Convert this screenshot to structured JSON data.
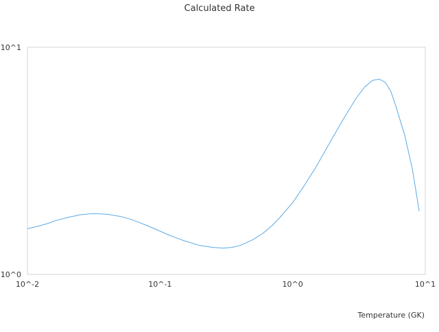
{
  "chart_data": {
    "type": "line",
    "title": "Calculated Rate",
    "xlabel": "Temperature (GK)",
    "ylabel": "",
    "xscale": "log",
    "yscale": "log",
    "xlim": [
      0.01,
      10
    ],
    "ylim": [
      1,
      10
    ],
    "x_ticks": [
      {
        "value": 0.01,
        "label": "10^-2"
      },
      {
        "value": 0.1,
        "label": "10^-1"
      },
      {
        "value": 1,
        "label": "10^0"
      },
      {
        "value": 10,
        "label": "10^1"
      }
    ],
    "y_ticks": [
      {
        "value": 1,
        "label": "10^0"
      },
      {
        "value": 10,
        "label": "10^1"
      }
    ],
    "grid": false,
    "legend": "none",
    "series": [
      {
        "color": "#5aa9e6",
        "x": [
          0.01,
          0.012,
          0.014,
          0.016,
          0.02,
          0.025,
          0.03,
          0.035,
          0.04,
          0.05,
          0.06,
          0.07,
          0.08,
          0.1,
          0.12,
          0.15,
          0.2,
          0.25,
          0.3,
          0.35,
          0.4,
          0.5,
          0.6,
          0.7,
          0.8,
          1.0,
          1.2,
          1.5,
          2.0,
          2.5,
          3.0,
          3.5,
          4.0,
          4.5,
          5.0,
          5.5,
          6.0,
          7.0,
          8.0,
          9.0
        ],
        "y": [
          1.59,
          1.63,
          1.67,
          1.72,
          1.78,
          1.83,
          1.85,
          1.85,
          1.84,
          1.8,
          1.75,
          1.69,
          1.64,
          1.55,
          1.48,
          1.41,
          1.34,
          1.315,
          1.305,
          1.315,
          1.34,
          1.42,
          1.52,
          1.64,
          1.78,
          2.07,
          2.42,
          2.97,
          4.0,
          5.0,
          5.95,
          6.7,
          7.15,
          7.25,
          7.0,
          6.4,
          5.5,
          4.1,
          2.9,
          1.9
        ]
      }
    ]
  }
}
